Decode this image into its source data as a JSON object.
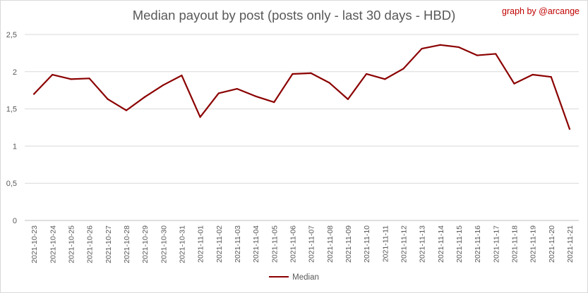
{
  "chart_data": {
    "type": "line",
    "title": "Median payout by post (posts only - last 30 days - HBD)",
    "credit": "graph by @arcange",
    "xlabel": "",
    "ylabel": "",
    "ylim": [
      0,
      2.5
    ],
    "yticks": [
      "0",
      "0,5",
      "1",
      "1,5",
      "2",
      "2,5"
    ],
    "yticks_values": [
      0,
      0.5,
      1,
      1.5,
      2,
      2.5
    ],
    "grid": true,
    "legend": "bottom-center",
    "x": [
      "2021-10-23",
      "2021-10-24",
      "2021-10-25",
      "2021-10-26",
      "2021-10-27",
      "2021-10-28",
      "2021-10-29",
      "2021-10-30",
      "2021-10-31",
      "2021-11-01",
      "2021-11-02",
      "2021-11-03",
      "2021-11-04",
      "2021-11-05",
      "2021-11-06",
      "2021-11-07",
      "2021-11-08",
      "2021-11-09",
      "2021-11-10",
      "2021-11-11",
      "2021-11-12",
      "2021-11-13",
      "2021-11-14",
      "2021-11-15",
      "2021-11-16",
      "2021-11-17",
      "2021-11-18",
      "2021-11-19",
      "2021-11-20",
      "2021-11-21"
    ],
    "series": [
      {
        "name": "Median",
        "color": "#8b0000",
        "values": [
          1.7,
          1.96,
          1.9,
          1.91,
          1.63,
          1.48,
          1.66,
          1.82,
          1.95,
          1.39,
          1.71,
          1.77,
          1.67,
          1.59,
          1.97,
          1.98,
          1.85,
          1.63,
          1.97,
          1.9,
          2.04,
          2.31,
          2.36,
          2.33,
          2.22,
          2.24,
          1.84,
          1.96,
          1.93,
          1.23
        ]
      }
    ]
  }
}
